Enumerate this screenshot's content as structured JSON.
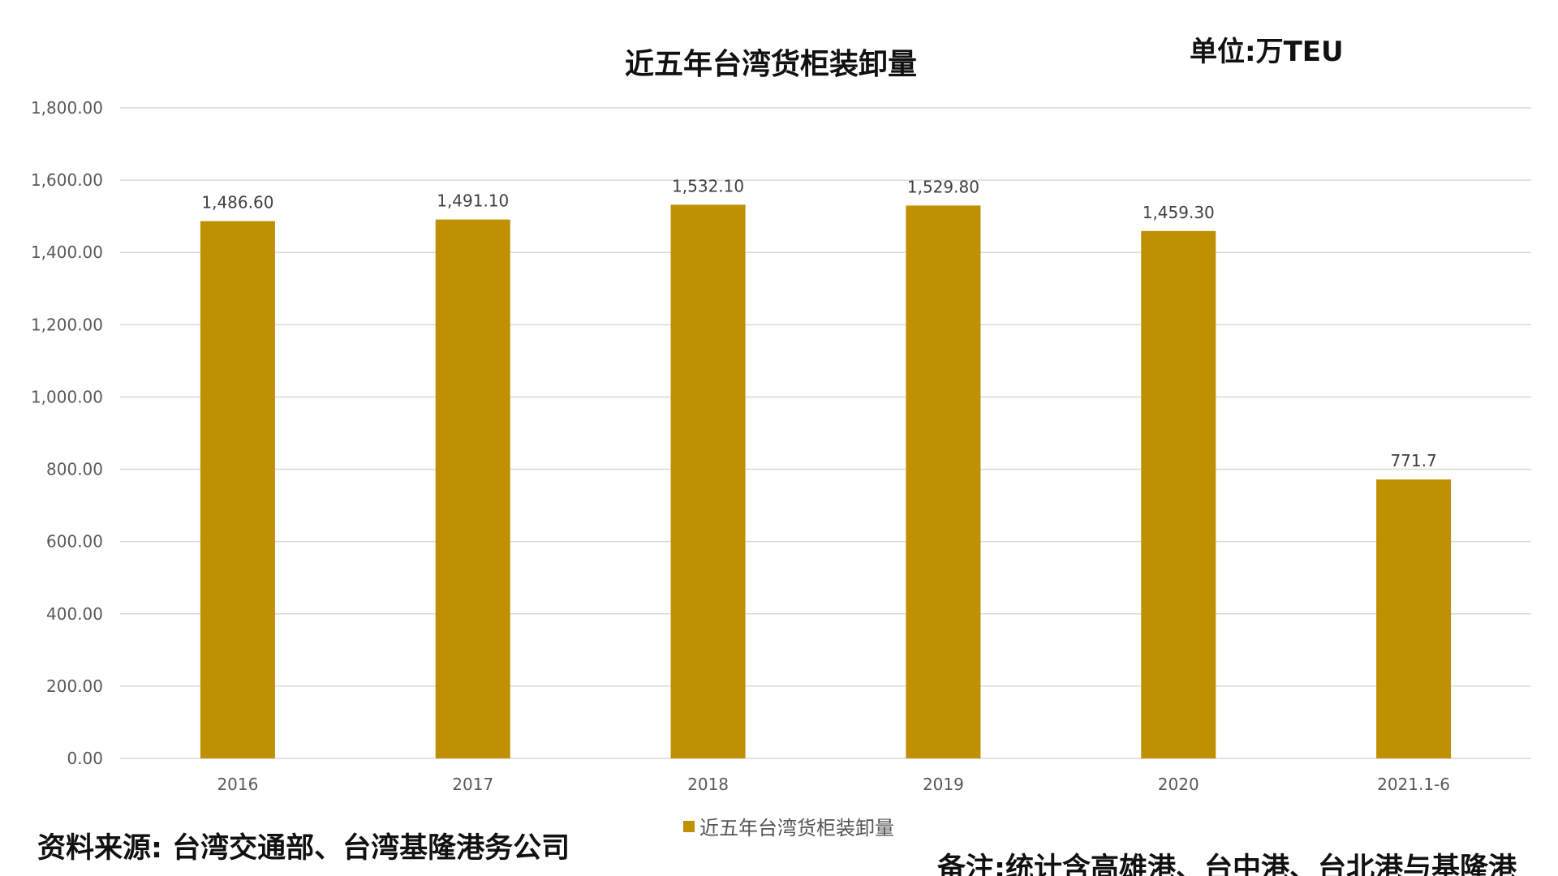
{
  "header": {
    "title": "近五年台湾货柜装卸量",
    "unit": "单位:万TEU"
  },
  "footer": {
    "source": "资料来源: 台湾交通部、台湾基隆港务公司",
    "remark": "备注:统计含高雄港、台中港、台北港与基隆港"
  },
  "legend": {
    "label": "近五年台湾货柜装卸量"
  },
  "colors": {
    "bar": "#BF9000",
    "grid": "#D9D9D9",
    "axis_text": "#595959",
    "label_text": "#404040"
  },
  "chart_data": {
    "type": "bar",
    "title": "近五年台湾货柜装卸量",
    "xlabel": "",
    "ylabel": "",
    "categories": [
      "2016",
      "2017",
      "2018",
      "2019",
      "2020",
      "2021.1-6"
    ],
    "series": [
      {
        "name": "近五年台湾货柜装卸量",
        "values": [
          1486.6,
          1491.1,
          1532.1,
          1529.8,
          1459.3,
          771.7
        ],
        "labels": [
          "1,486.60",
          "1,491.10",
          "1,532.10",
          "1,529.80",
          "1,459.30",
          "771.7"
        ]
      }
    ],
    "ylim": [
      0,
      1800
    ],
    "yticks": [
      0,
      200,
      400,
      600,
      800,
      1000,
      1200,
      1400,
      1600,
      1800
    ],
    "ytick_labels": [
      "0.00",
      "200.00",
      "400.00",
      "600.00",
      "800.00",
      "1,000.00",
      "1,200.00",
      "1,400.00",
      "1,600.00",
      "1,800.00"
    ],
    "grid": true,
    "legend_position": "bottom"
  }
}
